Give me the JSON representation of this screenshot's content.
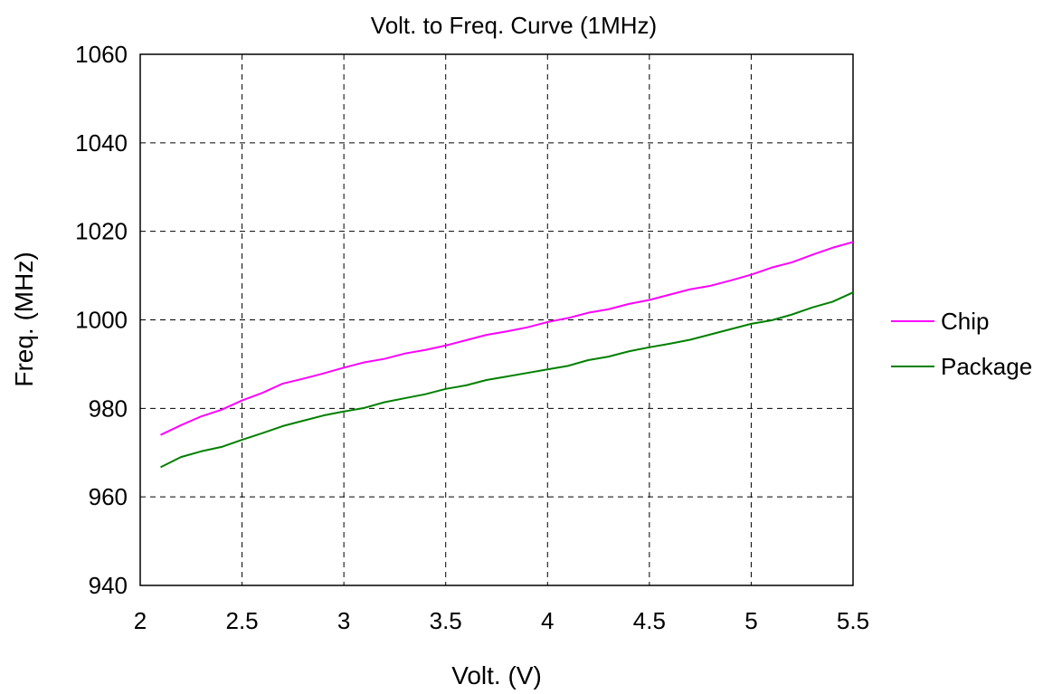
{
  "chart_data": {
    "type": "line",
    "title": "Volt. to Freq. Curve (1MHz)",
    "xlabel": "Volt. (V)",
    "ylabel": "Freq. (MHz)",
    "xlim": [
      2,
      5.5
    ],
    "ylim": [
      940,
      1060
    ],
    "x_ticks": [
      "2",
      "2.5",
      "3",
      "3.5",
      "4",
      "4.5",
      "5",
      "5.5"
    ],
    "y_ticks": [
      "940",
      "960",
      "980",
      "1000",
      "1020",
      "1040",
      "1060"
    ],
    "grid": true,
    "grid_style": "dashed",
    "legend_position": "right",
    "series": [
      {
        "name": "Chip",
        "color": "#ff00ff",
        "x": [
          2.1,
          2.2,
          2.3,
          2.4,
          2.5,
          2.6,
          2.7,
          2.8,
          2.9,
          3.0,
          3.1,
          3.2,
          3.3,
          3.4,
          3.5,
          3.6,
          3.7,
          3.8,
          3.9,
          4.0,
          4.1,
          4.2,
          4.3,
          4.4,
          4.5,
          4.6,
          4.7,
          4.8,
          4.9,
          5.0,
          5.1,
          5.2,
          5.3,
          5.4,
          5.5
        ],
        "values": [
          974.0,
          976.2,
          978.2,
          979.7,
          981.8,
          983.5,
          985.6,
          986.7,
          987.9,
          989.2,
          990.4,
          991.2,
          992.4,
          993.2,
          994.2,
          995.4,
          996.6,
          997.4,
          998.3,
          999.5,
          1000.4,
          1001.6,
          1002.4,
          1003.6,
          1004.5,
          1005.7,
          1006.9,
          1007.7,
          1008.9,
          1010.2,
          1011.8,
          1013.0,
          1014.7,
          1016.3,
          1017.6
        ]
      },
      {
        "name": "Package",
        "color": "#008000",
        "x": [
          2.1,
          2.2,
          2.3,
          2.4,
          2.5,
          2.6,
          2.7,
          2.8,
          2.9,
          3.0,
          3.1,
          3.2,
          3.3,
          3.4,
          3.5,
          3.6,
          3.7,
          3.8,
          3.9,
          4.0,
          4.1,
          4.2,
          4.3,
          4.4,
          4.5,
          4.6,
          4.7,
          4.8,
          4.9,
          5.0,
          5.1,
          5.2,
          5.3,
          5.4,
          5.5
        ],
        "values": [
          966.7,
          969.0,
          970.3,
          971.3,
          972.9,
          974.4,
          976.0,
          977.2,
          978.4,
          979.3,
          980.1,
          981.4,
          982.3,
          983.2,
          984.4,
          985.2,
          986.4,
          987.2,
          988.0,
          988.8,
          989.6,
          990.9,
          991.7,
          992.9,
          993.8,
          994.6,
          995.5,
          996.7,
          997.9,
          999.1,
          999.9,
          1001.2,
          1002.8,
          1004.1,
          1006.2
        ]
      }
    ]
  }
}
